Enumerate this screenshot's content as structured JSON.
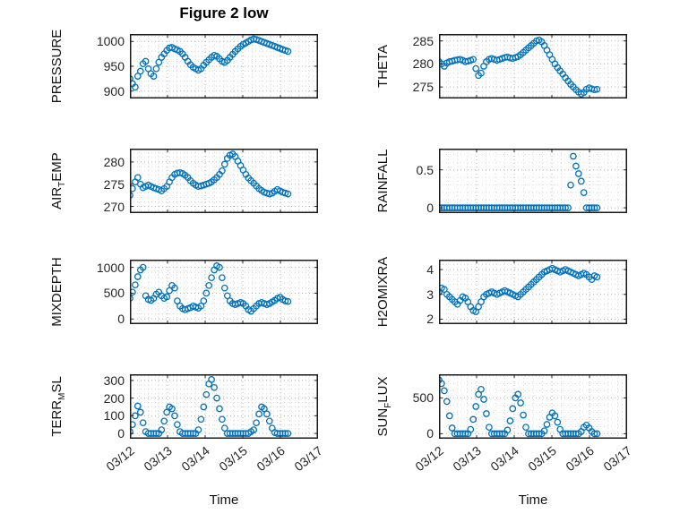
{
  "figure": {
    "title": "Figure 2 low",
    "xlabel": "Time",
    "marker_color": "#0072BD",
    "axis_color": "#262626",
    "grid_major_color": "#b3b3b3",
    "grid_minor_color": "#d9d9d9"
  },
  "x_axis": {
    "tick_labels": [
      "03/12",
      "03/13",
      "03/14",
      "03/15",
      "03/16",
      "03/17"
    ],
    "ticks": [
      0,
      1,
      2,
      3,
      4,
      5
    ],
    "xlim": [
      0,
      5
    ],
    "minor_step": 0.25
  },
  "x_common": [
    0,
    0.07,
    0.14,
    0.21,
    0.28,
    0.35,
    0.42,
    0.49,
    0.56,
    0.63,
    0.7,
    0.77,
    0.84,
    0.91,
    0.98,
    1.05,
    1.12,
    1.19,
    1.26,
    1.33,
    1.4,
    1.47,
    1.54,
    1.61,
    1.68,
    1.75,
    1.82,
    1.89,
    1.96,
    2.03,
    2.1,
    2.17,
    2.24,
    2.31,
    2.38,
    2.45,
    2.52,
    2.59,
    2.66,
    2.73,
    2.8,
    2.87,
    2.94,
    3.01,
    3.08,
    3.15,
    3.22,
    3.29,
    3.36,
    3.43,
    3.5,
    3.57,
    3.64,
    3.71,
    3.78,
    3.85,
    3.92,
    3.99,
    4.06,
    4.13,
    4.2
  ],
  "chart_data": [
    {
      "name": "PRESSURE",
      "type": "scatter",
      "row": 0,
      "col": 0,
      "ylabel": {
        "pre": "PRESSURE",
        "sub": "",
        "post": ""
      },
      "ylim": [
        885,
        1015
      ],
      "yticks": [
        900,
        950,
        1000
      ],
      "minor_step": 10,
      "y": [
        925,
        915,
        908,
        930,
        940,
        955,
        960,
        945,
        935,
        930,
        945,
        958,
        968,
        975,
        982,
        987,
        988,
        985,
        983,
        980,
        975,
        968,
        960,
        953,
        948,
        945,
        942,
        945,
        952,
        958,
        963,
        968,
        972,
        970,
        965,
        960,
        958,
        962,
        968,
        974,
        980,
        985,
        990,
        994,
        997,
        1000,
        1003,
        1005,
        1004,
        1002,
        1000,
        998,
        996,
        994,
        992,
        990,
        988,
        986,
        984,
        982,
        980
      ]
    },
    {
      "name": "THETA",
      "type": "scatter",
      "row": 0,
      "col": 1,
      "ylabel": {
        "pre": "THETA",
        "sub": "",
        "post": ""
      },
      "ylim": [
        272.5,
        286.5
      ],
      "yticks": [
        275,
        280,
        285
      ],
      "minor_step": 1,
      "y": [
        280.5,
        280,
        279.5,
        280.2,
        280.5,
        280.6,
        280.8,
        280.9,
        281,
        280.8,
        280.5,
        280.6,
        280.8,
        281,
        279,
        277.5,
        278,
        279.5,
        280.5,
        281,
        281.2,
        281,
        280.8,
        281,
        281.2,
        281.4,
        281.5,
        281.3,
        281.2,
        281.4,
        281.6,
        282,
        282.5,
        283,
        283.5,
        284,
        284.5,
        285,
        285.2,
        284.8,
        284,
        283,
        282,
        281,
        280,
        279.2,
        278.5,
        277.8,
        277,
        276.3,
        275.6,
        275,
        274.4,
        273.9,
        273.5,
        273.8,
        274.5,
        274.8,
        274.6,
        274.4,
        274.5
      ]
    },
    {
      "name": "AIR_TEMP",
      "type": "scatter",
      "row": 1,
      "col": 0,
      "ylabel": {
        "pre": "AIR",
        "sub": "T",
        "post": "EMP"
      },
      "ylim": [
        268.5,
        283
      ],
      "yticks": [
        270,
        275,
        280
      ],
      "minor_step": 1,
      "y": [
        272.5,
        274,
        275.5,
        276.5,
        275,
        274.2,
        274.5,
        274.8,
        274.5,
        274.2,
        274,
        273.8,
        273.5,
        274,
        274.5,
        275.5,
        276.5,
        277.2,
        277.5,
        277.6,
        277.4,
        277,
        276.5,
        275.8,
        275.2,
        274.8,
        274.5,
        274.6,
        274.8,
        275,
        275.2,
        275.5,
        276,
        276.5,
        277.2,
        278,
        279.5,
        280.8,
        281.5,
        281.8,
        281.2,
        280.2,
        279.2,
        278.2,
        277.2,
        276.4,
        275.8,
        275.2,
        274.6,
        274,
        273.6,
        273.2,
        273,
        272.8,
        273,
        273.4,
        273.8,
        273.5,
        273.2,
        273,
        272.8
      ]
    },
    {
      "name": "RAINFALL",
      "type": "scatter",
      "row": 1,
      "col": 1,
      "ylabel": {
        "pre": "RAINFALL",
        "sub": "",
        "post": ""
      },
      "ylim": [
        -0.07,
        0.78
      ],
      "yticks": [
        0,
        0.5
      ],
      "minor_step": 0.1,
      "y": [
        0,
        0,
        0,
        0,
        0,
        0,
        0,
        0,
        0,
        0,
        0,
        0,
        0,
        0,
        0,
        0,
        0,
        0,
        0,
        0,
        0,
        0,
        0,
        0,
        0,
        0,
        0,
        0,
        0,
        0,
        0,
        0,
        0,
        0,
        0,
        0,
        0,
        0,
        0,
        0,
        0,
        0,
        0,
        0,
        0,
        0,
        0,
        0,
        0,
        0,
        0.3,
        0.68,
        0.55,
        0.45,
        0.35,
        0.2,
        0,
        0,
        0,
        0,
        0
      ]
    },
    {
      "name": "MIXDEPTH",
      "type": "scatter",
      "row": 2,
      "col": 0,
      "ylabel": {
        "pre": "MIXDEPTH",
        "sub": "",
        "post": ""
      },
      "ylim": [
        -100,
        1150
      ],
      "yticks": [
        0,
        500,
        1000
      ],
      "minor_step": 100,
      "y": [
        400,
        520,
        660,
        820,
        950,
        1000,
        450,
        380,
        360,
        400,
        480,
        520,
        450,
        400,
        430,
        550,
        650,
        600,
        350,
        250,
        200,
        180,
        200,
        220,
        250,
        230,
        210,
        250,
        350,
        500,
        650,
        800,
        950,
        1030,
        1000,
        800,
        600,
        450,
        350,
        300,
        280,
        300,
        320,
        300,
        250,
        180,
        150,
        200,
        250,
        300,
        320,
        300,
        280,
        300,
        330,
        360,
        400,
        420,
        380,
        350,
        340
      ]
    },
    {
      "name": "H2OMIXRA",
      "type": "scatter",
      "row": 2,
      "col": 1,
      "ylabel": {
        "pre": "H2OMIXRA",
        "sub": "",
        "post": ""
      },
      "ylim": [
        1.8,
        4.4
      ],
      "yticks": [
        2,
        3,
        4
      ],
      "minor_step": 0.2,
      "y": [
        3.1,
        3.25,
        3.2,
        3.0,
        2.9,
        2.8,
        2.7,
        2.6,
        2.75,
        2.9,
        2.85,
        2.7,
        2.5,
        2.35,
        2.3,
        2.5,
        2.7,
        2.9,
        3.0,
        3.05,
        3.1,
        3.05,
        3.0,
        3.05,
        3.1,
        3.15,
        3.1,
        3.05,
        3.0,
        2.95,
        2.9,
        3.0,
        3.1,
        3.2,
        3.3,
        3.4,
        3.5,
        3.6,
        3.7,
        3.8,
        3.9,
        3.95,
        4.0,
        4.05,
        4.0,
        3.95,
        3.9,
        3.95,
        4.0,
        3.95,
        3.9,
        3.85,
        3.8,
        3.75,
        3.8,
        3.85,
        3.8,
        3.7,
        3.6,
        3.75,
        3.7
      ]
    },
    {
      "name": "TERR_MSL",
      "type": "scatter",
      "row": 3,
      "col": 0,
      "ylabel": {
        "pre": "TERR",
        "sub": "M",
        "post": "SL"
      },
      "ylim": [
        -30,
        335
      ],
      "yticks": [
        0,
        100,
        200,
        300
      ],
      "minor_step": 25,
      "y": [
        10,
        50,
        100,
        155,
        120,
        60,
        10,
        0,
        0,
        0,
        0,
        0,
        20,
        70,
        120,
        150,
        140,
        100,
        50,
        10,
        0,
        0,
        0,
        0,
        0,
        0,
        20,
        80,
        150,
        220,
        280,
        305,
        260,
        200,
        140,
        80,
        30,
        0,
        0,
        0,
        0,
        0,
        0,
        0,
        0,
        0,
        10,
        20,
        60,
        110,
        150,
        140,
        110,
        70,
        30,
        5,
        0,
        0,
        0,
        0,
        0
      ]
    },
    {
      "name": "SUN_FLUX",
      "type": "scatter",
      "row": 3,
      "col": 1,
      "ylabel": {
        "pre": "SUN",
        "sub": "F",
        "post": "LUX"
      },
      "ylim": [
        -70,
        830
      ],
      "yticks": [
        0,
        500
      ],
      "minor_step": 100,
      "y": [
        750,
        700,
        600,
        450,
        250,
        80,
        0,
        0,
        0,
        0,
        0,
        0,
        60,
        200,
        380,
        550,
        620,
        480,
        280,
        90,
        0,
        0,
        0,
        0,
        0,
        0,
        50,
        180,
        350,
        500,
        550,
        430,
        260,
        90,
        0,
        0,
        0,
        0,
        0,
        0,
        40,
        130,
        230,
        290,
        250,
        160,
        60,
        0,
        0,
        0,
        0,
        0,
        0,
        0,
        30,
        90,
        120,
        80,
        30,
        0,
        0
      ]
    }
  ]
}
